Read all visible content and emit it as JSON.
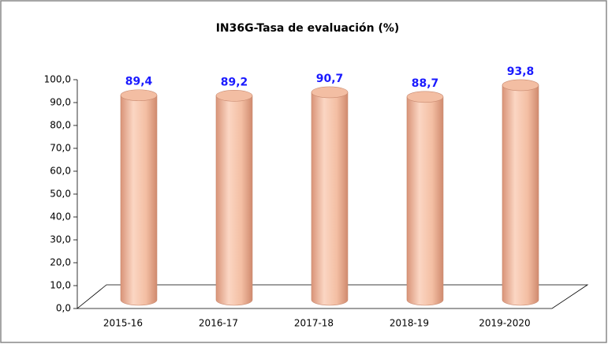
{
  "chart_data": {
    "type": "bar3d",
    "title": "IN36G-Tasa de evaluación (%)",
    "categories": [
      "2015-16",
      "2016-17",
      "2017-18",
      "2018-19",
      "2019-2020"
    ],
    "values": [
      89.4,
      89.2,
      90.7,
      88.7,
      93.8
    ],
    "value_labels": [
      "89,4",
      "89,2",
      "90,7",
      "88,7",
      "93,8"
    ],
    "color": "#f3bea3",
    "ylim": [
      0,
      100
    ],
    "yticks": [
      {
        "value": 0,
        "label": "0,0"
      },
      {
        "value": 10,
        "label": "10,0"
      },
      {
        "value": 20,
        "label": "20,0"
      },
      {
        "value": 30,
        "label": "30,0"
      },
      {
        "value": 40,
        "label": "40,0"
      },
      {
        "value": 50,
        "label": "50,0"
      },
      {
        "value": 60,
        "label": "60,0"
      },
      {
        "value": 70,
        "label": "70,0"
      },
      {
        "value": 80,
        "label": "80,0"
      },
      {
        "value": 90,
        "label": "90,0"
      },
      {
        "value": 100,
        "label": "100,0"
      }
    ]
  }
}
